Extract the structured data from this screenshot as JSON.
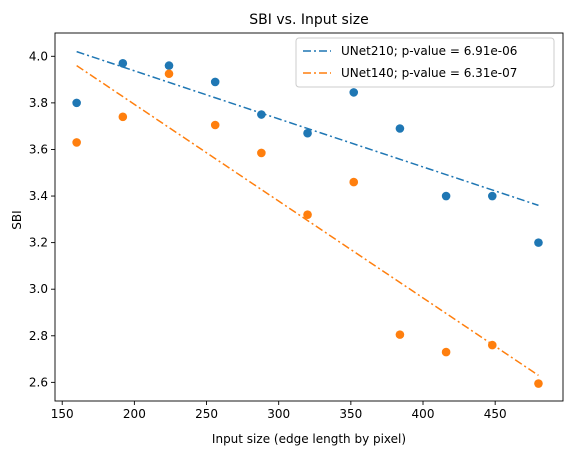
{
  "chart_data": {
    "type": "scatter",
    "title": "SBI vs. Input size",
    "xlabel": "Input size (edge length by pixel)",
    "ylabel": "SBI",
    "xlim": [
      145,
      497
    ],
    "ylim": [
      2.52,
      4.1
    ],
    "xticks": [
      150,
      200,
      250,
      300,
      350,
      400,
      450
    ],
    "yticks": [
      2.6,
      2.8,
      3.0,
      3.2,
      3.4,
      3.6,
      3.8,
      4.0
    ],
    "grid": false,
    "legend_position": "top-right",
    "series": [
      {
        "name": "UNet210; p-value = 6.91e-06",
        "color": "#1f77b4",
        "x": [
          160,
          192,
          224,
          256,
          288,
          320,
          352,
          384,
          416,
          448,
          480
        ],
        "y": [
          3.8,
          3.97,
          3.96,
          3.89,
          3.75,
          3.67,
          3.845,
          3.69,
          3.4,
          3.4,
          3.2
        ],
        "fit": {
          "x": [
            160,
            480
          ],
          "y": [
            4.02,
            3.36
          ]
        }
      },
      {
        "name": "UNet140; p-value = 6.31e-07",
        "color": "#ff7f0e",
        "x": [
          160,
          192,
          224,
          256,
          288,
          320,
          352,
          384,
          416,
          448,
          480
        ],
        "y": [
          3.63,
          3.74,
          3.925,
          3.705,
          3.585,
          3.32,
          3.46,
          2.805,
          2.73,
          2.76,
          2.595
        ],
        "fit": {
          "x": [
            160,
            480
          ],
          "y": [
            3.96,
            2.63
          ]
        }
      }
    ]
  }
}
